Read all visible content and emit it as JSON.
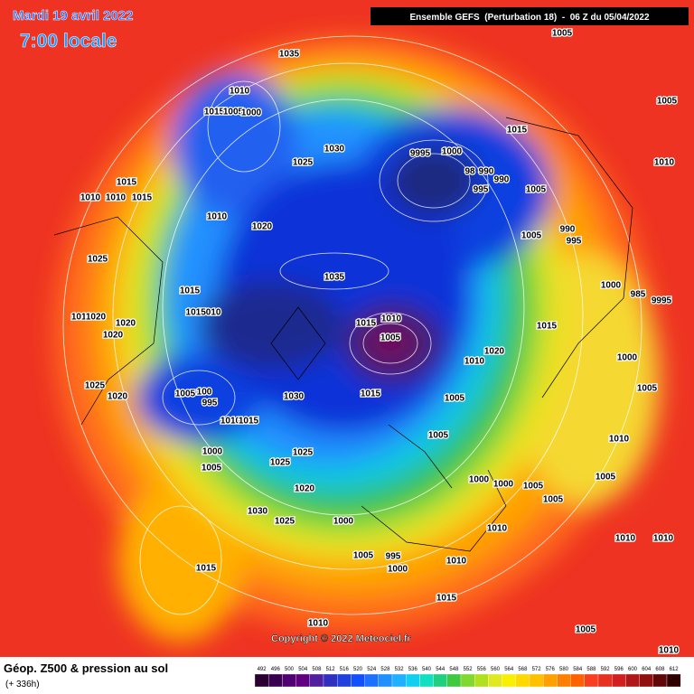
{
  "header": {
    "date": "Mardi 19 avril 2022",
    "time": "7:00 locale",
    "run": "Ensemble GEFS  (Perturbation 18)  -  06 Z du 05/04/2022"
  },
  "map": {
    "isobar_labels": [
      "1035",
      "1005",
      "1010",
      "1015",
      "1005",
      "1000",
      "1030",
      "1025",
      "9995",
      "1000",
      "98",
      "990",
      "990",
      "995",
      "1015",
      "1005",
      "1005",
      "1010",
      "1015",
      "1010",
      "1010",
      "1015",
      "1010",
      "1020",
      "1005",
      "990",
      "995",
      "1025",
      "1035",
      "1000",
      "985",
      "9995",
      "1015",
      "1015010",
      "1010",
      "1020",
      "1020",
      "1020",
      "1010",
      "1015",
      "1005",
      "1015",
      "1020",
      "1010",
      "1000",
      "1025",
      "1020",
      "1005",
      "100",
      "995",
      "1030",
      "1015",
      "1005",
      "1005",
      "1010",
      "1015",
      "1005",
      "1010",
      "1000",
      "1025",
      "1005",
      "1025",
      "1000",
      "1000",
      "1005",
      "1020",
      "1005",
      "1005",
      "1030",
      "1025",
      "1000",
      "1010",
      "1010",
      "1010",
      "1015",
      "1005",
      "995",
      "1000",
      "1010",
      "1015",
      "1010",
      "1005",
      "1010"
    ],
    "copyright": "Copyright © 2022 Meteociel.fr"
  },
  "footer": {
    "title": "Géop. Z500 & pression au sol",
    "lead": "(+ 336h)",
    "scale": [
      492,
      496,
      500,
      504,
      508,
      512,
      516,
      520,
      524,
      528,
      532,
      536,
      540,
      544,
      548,
      552,
      556,
      560,
      564,
      568,
      572,
      576,
      580,
      584,
      588,
      592,
      596,
      600,
      604,
      608,
      612
    ]
  }
}
